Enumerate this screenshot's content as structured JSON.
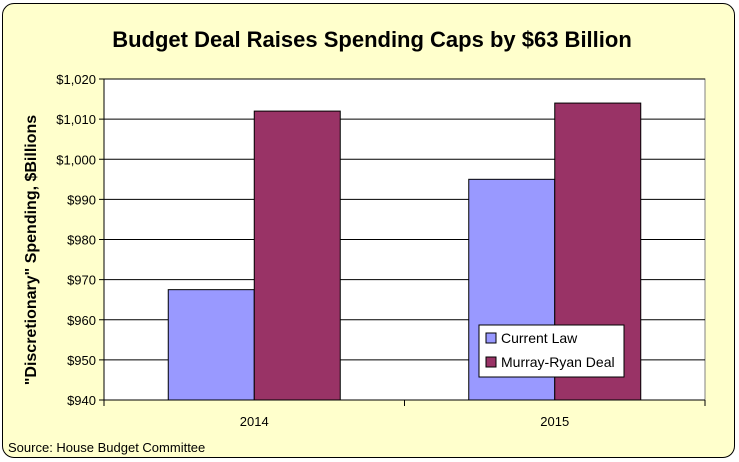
{
  "chart_data": {
    "type": "bar",
    "title": "Budget Deal Raises Spending Caps by $63 Billion",
    "xlabel": "",
    "ylabel": "\"Discretionary\" Spending, $Billions",
    "categories": [
      "2014",
      "2015"
    ],
    "series": [
      {
        "name": "Current Law",
        "color": "#9999ff",
        "values": [
          967.5,
          995
        ]
      },
      {
        "name": "Murray-Ryan Deal",
        "color": "#993366",
        "values": [
          1012,
          1014
        ]
      }
    ],
    "ylim": [
      940,
      1020
    ],
    "ytick_step": 10,
    "ytick_labels": [
      "$940",
      "$950",
      "$960",
      "$970",
      "$980",
      "$990",
      "$1,000",
      "$1,010",
      "$1,020"
    ],
    "grid": true,
    "legend_position": "bottom-right",
    "plot_background": "#ffffff",
    "chart_background": "#ffffcc",
    "source": "Source: House Budget Committee"
  }
}
